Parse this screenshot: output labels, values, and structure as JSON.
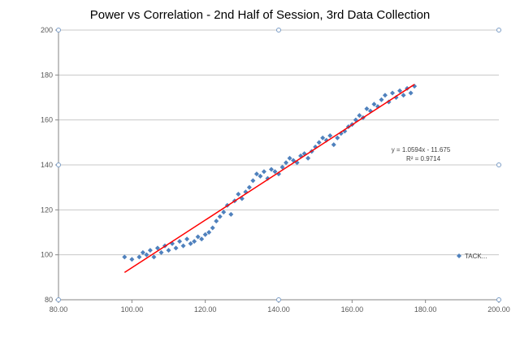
{
  "chart_data": {
    "type": "scatter",
    "title": "Power vs Correlation - 2nd Half of Session, 3rd Data Collection",
    "xlim": [
      80,
      200
    ],
    "ylim": [
      80,
      200
    ],
    "x_ticks": [
      "80.00",
      "100.00",
      "120.00",
      "140.00",
      "160.00",
      "180.00",
      "200.00"
    ],
    "y_ticks": [
      "80",
      "100",
      "120",
      "140",
      "160",
      "180",
      "200"
    ],
    "grid": "horizontal",
    "legend_position": "right",
    "series": [
      {
        "name": "TACK...",
        "color": "#4F81BD",
        "marker": "diamond",
        "points": [
          [
            98,
            99
          ],
          [
            100,
            98
          ],
          [
            102,
            99
          ],
          [
            103,
            101
          ],
          [
            104,
            100
          ],
          [
            105,
            102
          ],
          [
            106,
            99
          ],
          [
            107,
            103
          ],
          [
            108,
            101
          ],
          [
            109,
            104
          ],
          [
            110,
            102
          ],
          [
            111,
            105
          ],
          [
            112,
            103
          ],
          [
            113,
            106
          ],
          [
            114,
            104
          ],
          [
            115,
            107
          ],
          [
            116,
            105
          ],
          [
            117,
            106
          ],
          [
            118,
            108
          ],
          [
            119,
            107
          ],
          [
            120,
            109
          ],
          [
            121,
            110
          ],
          [
            122,
            112
          ],
          [
            123,
            115
          ],
          [
            124,
            117
          ],
          [
            125,
            119
          ],
          [
            126,
            122
          ],
          [
            127,
            118
          ],
          [
            128,
            124
          ],
          [
            129,
            127
          ],
          [
            130,
            125
          ],
          [
            131,
            128
          ],
          [
            132,
            130
          ],
          [
            133,
            133
          ],
          [
            134,
            136
          ],
          [
            135,
            135
          ],
          [
            136,
            137
          ],
          [
            137,
            134
          ],
          [
            138,
            138
          ],
          [
            139,
            137
          ],
          [
            140,
            136
          ],
          [
            141,
            139
          ],
          [
            142,
            141
          ],
          [
            143,
            143
          ],
          [
            144,
            142
          ],
          [
            145,
            141
          ],
          [
            146,
            144
          ],
          [
            147,
            145
          ],
          [
            148,
            143
          ],
          [
            149,
            146
          ],
          [
            150,
            148
          ],
          [
            151,
            150
          ],
          [
            152,
            152
          ],
          [
            153,
            151
          ],
          [
            154,
            153
          ],
          [
            155,
            149
          ],
          [
            156,
            152
          ],
          [
            157,
            154
          ],
          [
            158,
            155
          ],
          [
            159,
            157
          ],
          [
            160,
            158
          ],
          [
            161,
            160
          ],
          [
            162,
            162
          ],
          [
            163,
            161
          ],
          [
            164,
            165
          ],
          [
            165,
            164
          ],
          [
            166,
            167
          ],
          [
            167,
            166
          ],
          [
            168,
            169
          ],
          [
            169,
            171
          ],
          [
            170,
            168
          ],
          [
            171,
            172
          ],
          [
            172,
            170
          ],
          [
            173,
            173
          ],
          [
            174,
            171
          ],
          [
            175,
            174
          ],
          [
            176,
            172
          ],
          [
            177,
            175
          ]
        ],
        "trendline": {
          "type": "linear",
          "slope": 1.0594,
          "intercept": -11.675,
          "x_range": [
            98,
            177
          ],
          "color": "#FF0000",
          "equation": "y = 1.0594x - 11.675",
          "r2": "R² = 0.9714"
        }
      }
    ]
  }
}
